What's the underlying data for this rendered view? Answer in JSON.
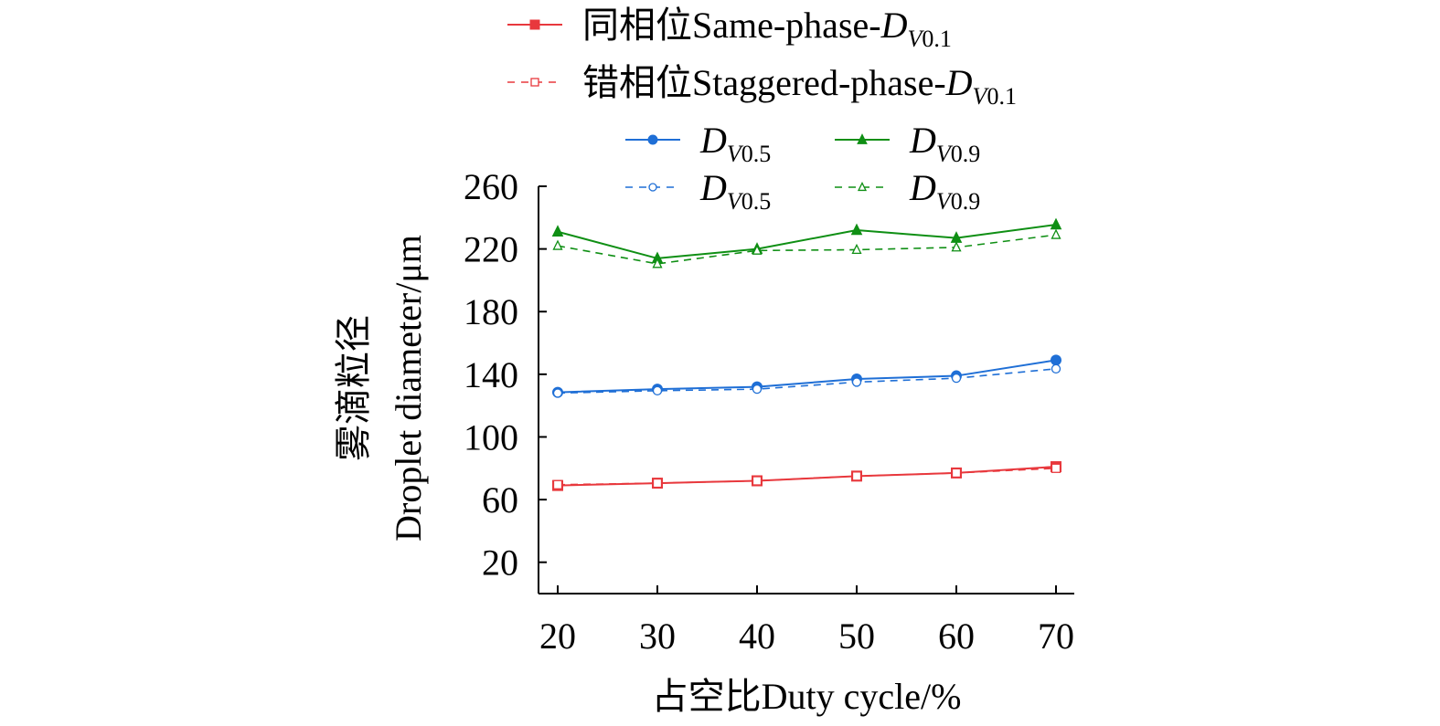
{
  "chart_data": {
    "type": "line",
    "xlabel": "占空比Duty cycle/%",
    "ylabel_line1": "雾滴粒径",
    "ylabel_line2": "Droplet diameter/μm",
    "x": [
      20,
      30,
      40,
      50,
      60,
      70
    ],
    "x_tick_labels": [
      "20",
      "30",
      "40",
      "50",
      "60",
      "70"
    ],
    "y_ticks": [
      20,
      60,
      100,
      140,
      180,
      220,
      260
    ],
    "y_tick_labels": [
      "20",
      "60",
      "100",
      "140",
      "180",
      "220",
      "260"
    ],
    "xlim": [
      20,
      70
    ],
    "ylim": [
      0,
      260
    ],
    "grid": false,
    "legend_position": "top",
    "colors": {
      "red": "#e8383d",
      "blue": "#1f6fd6",
      "green": "#0f8f14"
    },
    "series": [
      {
        "name": "同相位Same-phase-DV0.1",
        "legend_prefix": "同相位Same-phase-",
        "legend_var": "D",
        "legend_sub": "V0.1",
        "color": "red",
        "marker": "square",
        "dashed": false,
        "values": [
          69,
          70.5,
          72,
          75,
          77,
          81
        ]
      },
      {
        "name": "错相位Staggered-phase-DV0.1",
        "legend_prefix": "错相位Staggered-phase-",
        "legend_var": "D",
        "legend_sub": "V0.1",
        "color": "red",
        "marker": "square",
        "dashed": true,
        "values": [
          69.5,
          70.5,
          72,
          75,
          77,
          80
        ]
      },
      {
        "name": "DV0.5",
        "legend_prefix": "",
        "legend_var": "D",
        "legend_sub": "V0.5",
        "color": "blue",
        "marker": "circle",
        "dashed": false,
        "values": [
          128.5,
          130.5,
          132,
          137,
          139,
          149
        ]
      },
      {
        "name": "DV0.9",
        "legend_prefix": "",
        "legend_var": "D",
        "legend_sub": "V0.9",
        "color": "green",
        "marker": "triangle",
        "dashed": false,
        "values": [
          231,
          214,
          220,
          232,
          227,
          235.5
        ]
      },
      {
        "name": "DV0.5",
        "legend_prefix": "",
        "legend_var": "D",
        "legend_sub": "V0.5",
        "color": "blue",
        "marker": "circle",
        "dashed": true,
        "values": [
          128,
          129.5,
          130.5,
          135,
          137.5,
          143.5
        ]
      },
      {
        "name": "DV0.9",
        "legend_prefix": "",
        "legend_var": "D",
        "legend_sub": "V0.9",
        "color": "green",
        "marker": "triangle",
        "dashed": true,
        "values": [
          222,
          210.5,
          219,
          219.5,
          221,
          229
        ]
      }
    ]
  }
}
